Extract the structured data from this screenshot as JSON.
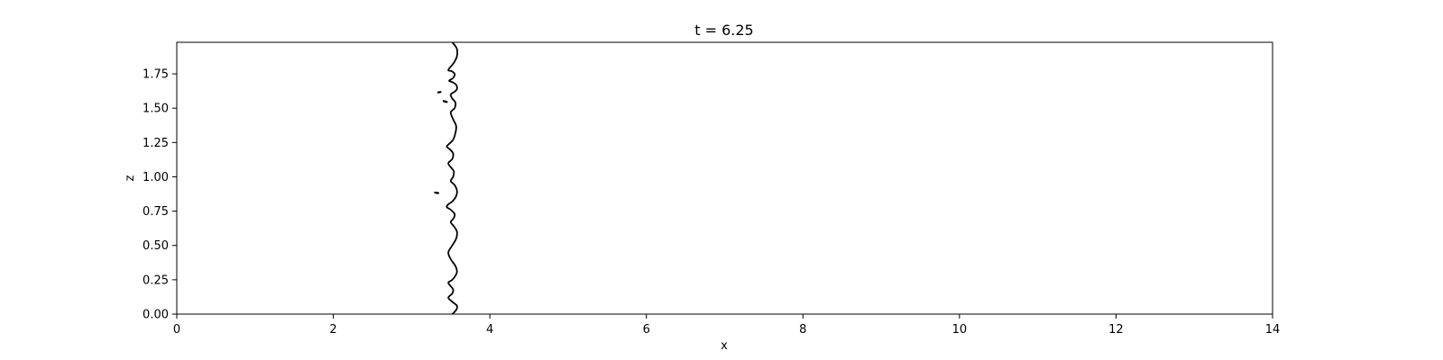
{
  "chart_data": {
    "type": "line",
    "title": "t = 6.25",
    "xlabel": "x",
    "ylabel": "z",
    "xlim": [
      0,
      14
    ],
    "ylim": [
      0,
      1.98
    ],
    "xticks": [
      0,
      2,
      4,
      6,
      8,
      10,
      12,
      14
    ],
    "xtick_labels": [
      "0",
      "2",
      "4",
      "6",
      "8",
      "10",
      "12",
      "14"
    ],
    "yticks": [
      0,
      0.25,
      0.5,
      0.75,
      1.0,
      1.25,
      1.5,
      1.75
    ],
    "ytick_labels": [
      "0.00",
      "0.25",
      "0.50",
      "0.75",
      "1.00",
      "1.25",
      "1.50",
      "1.75"
    ],
    "grid": false,
    "line_color": "#000000",
    "front": [
      [
        3.52,
        0.0
      ],
      [
        3.57,
        0.03
      ],
      [
        3.58,
        0.06
      ],
      [
        3.52,
        0.09
      ],
      [
        3.47,
        0.12
      ],
      [
        3.52,
        0.15
      ],
      [
        3.53,
        0.18
      ],
      [
        3.49,
        0.21
      ],
      [
        3.47,
        0.23
      ],
      [
        3.52,
        0.25
      ],
      [
        3.56,
        0.28
      ],
      [
        3.58,
        0.31
      ],
      [
        3.56,
        0.35
      ],
      [
        3.5,
        0.4
      ],
      [
        3.47,
        0.45
      ],
      [
        3.52,
        0.5
      ],
      [
        3.57,
        0.55
      ],
      [
        3.58,
        0.6
      ],
      [
        3.54,
        0.64
      ],
      [
        3.5,
        0.67
      ],
      [
        3.54,
        0.7
      ],
      [
        3.55,
        0.73
      ],
      [
        3.5,
        0.76
      ],
      [
        3.45,
        0.78
      ],
      [
        3.47,
        0.8
      ],
      [
        3.52,
        0.82
      ],
      [
        3.57,
        0.86
      ],
      [
        3.58,
        0.9
      ],
      [
        3.55,
        0.94
      ],
      [
        3.5,
        0.97
      ],
      [
        3.53,
        1.0
      ],
      [
        3.54,
        1.04
      ],
      [
        3.5,
        1.07
      ],
      [
        3.47,
        1.1
      ],
      [
        3.52,
        1.13
      ],
      [
        3.53,
        1.17
      ],
      [
        3.49,
        1.2
      ],
      [
        3.45,
        1.22
      ],
      [
        3.48,
        1.24
      ],
      [
        3.53,
        1.27
      ],
      [
        3.56,
        1.32
      ],
      [
        3.57,
        1.37
      ],
      [
        3.53,
        1.42
      ],
      [
        3.5,
        1.47
      ],
      [
        3.55,
        1.5
      ],
      [
        3.56,
        1.54
      ],
      [
        3.52,
        1.57
      ],
      [
        3.5,
        1.6
      ],
      [
        3.55,
        1.62
      ],
      [
        3.58,
        1.64
      ],
      [
        3.57,
        1.67
      ],
      [
        3.52,
        1.69
      ],
      [
        3.48,
        1.7
      ],
      [
        3.53,
        1.72
      ],
      [
        3.55,
        1.75
      ],
      [
        3.51,
        1.77
      ],
      [
        3.47,
        1.78
      ],
      [
        3.54,
        1.83
      ],
      [
        3.58,
        1.88
      ],
      [
        3.58,
        1.93
      ],
      [
        3.55,
        1.96
      ],
      [
        3.52,
        1.98
      ]
    ],
    "droplets": [
      [
        [
          3.34,
          1.615
        ],
        [
          3.37,
          1.618
        ]
      ],
      [
        [
          3.41,
          1.552
        ],
        [
          3.45,
          1.545
        ]
      ],
      [
        [
          3.3,
          0.885
        ],
        [
          3.34,
          0.882
        ]
      ]
    ]
  }
}
